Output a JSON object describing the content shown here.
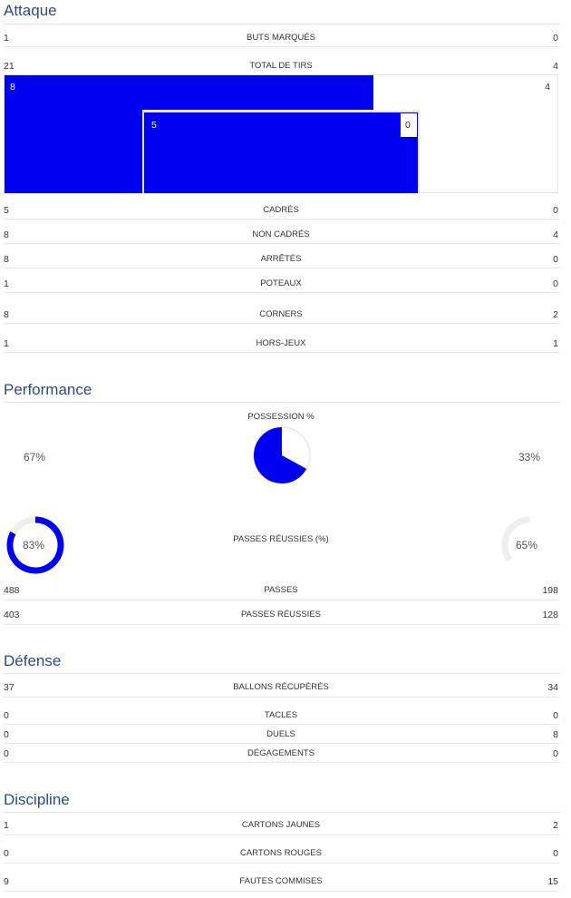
{
  "sections": {
    "attack": "Attaque",
    "performance": "Performance",
    "defense": "Défense",
    "discipline": "Discipline"
  },
  "attack_rows": {
    "goals": {
      "left": "1",
      "label": "BUTS MARQUÉS",
      "right": "0"
    },
    "shots": {
      "left": "21",
      "label": "TOTAL DE TIRS",
      "right": "4"
    },
    "on_target": {
      "left": "5",
      "label": "CADRÉS",
      "right": "0"
    },
    "off_target": {
      "left": "8",
      "label": "NON CADRÉS",
      "right": "4"
    },
    "blocked": {
      "left": "8",
      "label": "ARRÊTÉS",
      "right": "0"
    },
    "posts": {
      "left": "1",
      "label": "POTEAUX",
      "right": "0"
    },
    "corners": {
      "left": "8",
      "label": "CORNERS",
      "right": "2"
    },
    "offside": {
      "left": "1",
      "label": "HORS-JEUX",
      "right": "1"
    }
  },
  "shot_chart": {
    "outside_box_left": "8",
    "outside_box_right": "4",
    "inside_box_left": "5",
    "inside_box_right": "0"
  },
  "performance": {
    "possession_label": "POSSESSION %",
    "possession_left": "67%",
    "possession_right": "33%",
    "possession_left_value": 67,
    "pass_pct_label": "PASSES RÉUSSIES (%)",
    "pass_pct_left": "83%",
    "pass_pct_right": "65%",
    "pass_pct_left_value": 83,
    "pass_pct_right_value": 65,
    "passes": {
      "left": "488",
      "label": "PASSES",
      "right": "198"
    },
    "passes_completed": {
      "left": "403",
      "label": "PASSES RÉUSSIES",
      "right": "128"
    }
  },
  "defense_rows": {
    "recoveries": {
      "left": "37",
      "label": "BALLONS RÉCUPÉRÉS",
      "right": "34"
    },
    "tackles": {
      "left": "0",
      "label": "TACLES",
      "right": "0"
    },
    "duels": {
      "left": "0",
      "label": "DUELS",
      "right": "8"
    },
    "clearances": {
      "left": "0",
      "label": "DÉGAGEMENTS",
      "right": "0"
    }
  },
  "discipline_rows": {
    "yellow": {
      "left": "1",
      "label": "CARTONS JAUNES",
      "right": "2"
    },
    "red": {
      "left": "0",
      "label": "CARTONS ROUGES",
      "right": "0"
    },
    "fouls": {
      "left": "9",
      "label": "FAUTES COMMISES",
      "right": "15"
    }
  },
  "colors": {
    "home": "#0000f0",
    "away": "#ffffff",
    "title": "#2b4a8a"
  }
}
